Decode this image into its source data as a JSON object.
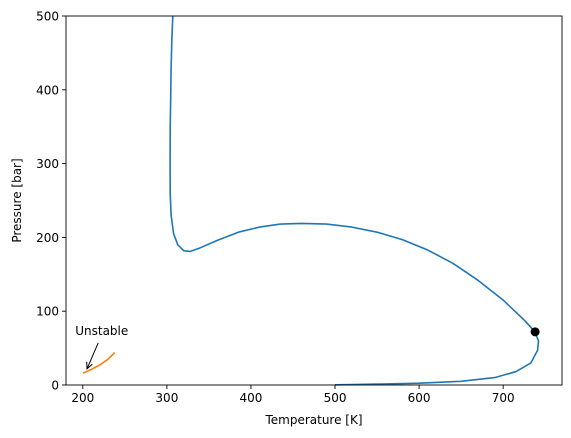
{
  "chart_data": {
    "type": "line",
    "title": "",
    "xlabel": "Temperature [K]",
    "ylabel": "Pressure [bar]",
    "xlim": [
      180,
      770
    ],
    "ylim": [
      0,
      500
    ],
    "xticks": [
      200,
      300,
      400,
      500,
      600,
      700
    ],
    "yticks": [
      0,
      100,
      200,
      300,
      400,
      500
    ],
    "grid": false,
    "series": [
      {
        "color": "#1f77b4",
        "points": [
          [
            307,
            500
          ],
          [
            306,
            470
          ],
          [
            305,
            430
          ],
          [
            304.5,
            390
          ],
          [
            304,
            350
          ],
          [
            303.8,
            300
          ],
          [
            304,
            260
          ],
          [
            305,
            230
          ],
          [
            308,
            205
          ],
          [
            313,
            190
          ],
          [
            320,
            182
          ],
          [
            328,
            181
          ],
          [
            340,
            186
          ],
          [
            360,
            196
          ],
          [
            385,
            207
          ],
          [
            410,
            214
          ],
          [
            435,
            218
          ],
          [
            460,
            219
          ],
          [
            490,
            218
          ],
          [
            520,
            214
          ],
          [
            550,
            207
          ],
          [
            580,
            197
          ],
          [
            610,
            183
          ],
          [
            640,
            165
          ],
          [
            670,
            142
          ],
          [
            700,
            115
          ],
          [
            725,
            88
          ],
          [
            737,
            73
          ],
          [
            742,
            60
          ],
          [
            741,
            47
          ],
          [
            733,
            30
          ],
          [
            715,
            18
          ],
          [
            690,
            10
          ],
          [
            650,
            5
          ],
          [
            600,
            2.5
          ],
          [
            550,
            1.2
          ],
          [
            520,
            0.6
          ],
          [
            500,
            0.3
          ]
        ]
      },
      {
        "color": "#ff7f0e",
        "points": [
          [
            200,
            16
          ],
          [
            210,
            21
          ],
          [
            220,
            27
          ],
          [
            230,
            35
          ],
          [
            238,
            44
          ]
        ]
      }
    ],
    "critical_point": {
      "x": 738,
      "y": 72,
      "color": "#000000"
    },
    "annotation": {
      "text": "Unstable",
      "xy": [
        205,
        22
      ],
      "xytext": [
        191,
        68
      ]
    }
  }
}
